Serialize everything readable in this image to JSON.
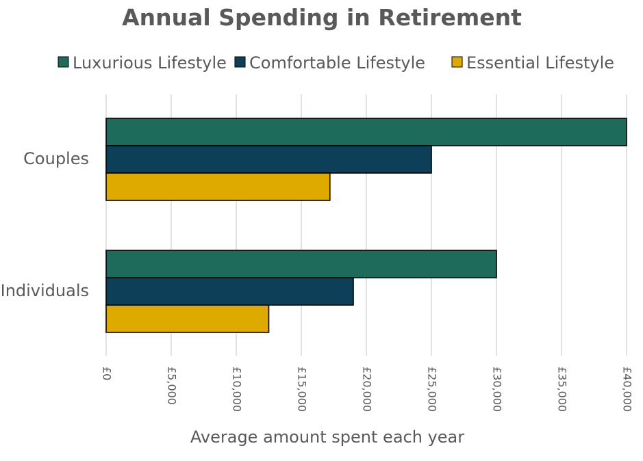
{
  "chart_data": {
    "type": "bar",
    "orientation": "horizontal",
    "title": "Annual Spending in Retirement",
    "xlabel": "Average amount spent each year",
    "ylabel": "",
    "categories": [
      "Couples",
      "Individuals"
    ],
    "series": [
      {
        "name": "Luxurious Lifestyle",
        "color": "#1e6b5c",
        "values": [
          40000,
          30000
        ]
      },
      {
        "name": "Comfortable Lifestyle",
        "color": "#0d4058",
        "values": [
          25000,
          19000
        ]
      },
      {
        "name": "Essential Lifestyle",
        "color": "#dfaa00",
        "values": [
          17200,
          12500
        ]
      }
    ],
    "xlim": [
      0,
      40000
    ],
    "xticks": [
      0,
      5000,
      10000,
      15000,
      20000,
      25000,
      30000,
      35000,
      40000
    ],
    "xtick_labels": [
      "£0",
      "£5,000",
      "£10,000",
      "£15,000",
      "£20,000",
      "£25,000",
      "£30,000",
      "£35,000",
      "£40,000"
    ],
    "grid": true,
    "legend_position": "top"
  }
}
